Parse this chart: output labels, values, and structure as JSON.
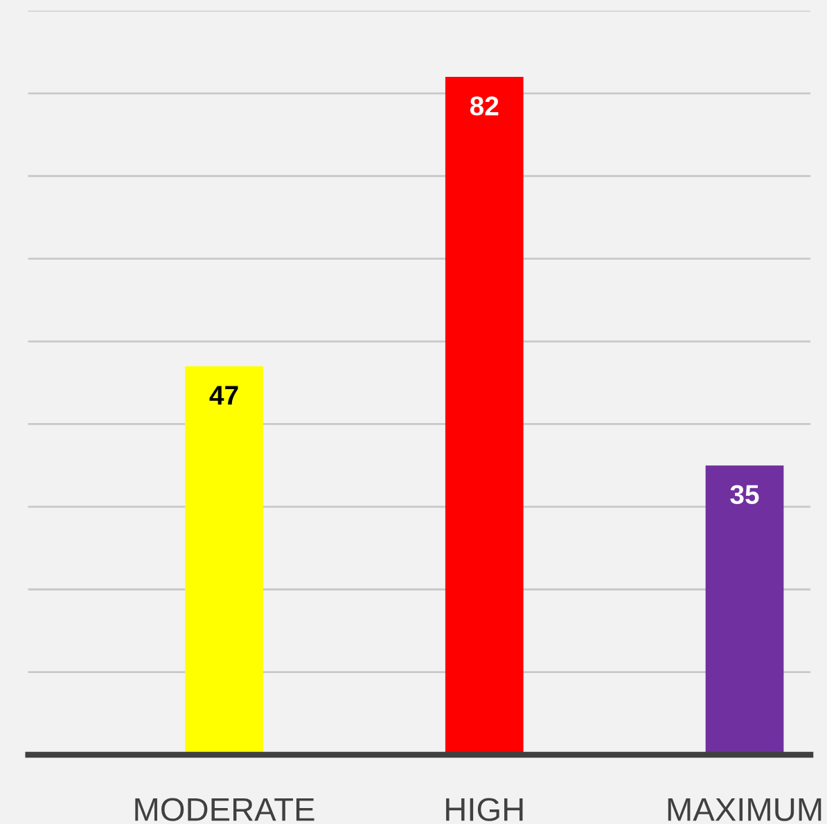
{
  "chart_data": {
    "type": "bar",
    "categories": [
      "MODERATE",
      "HIGH",
      "MAXIMUM"
    ],
    "values": [
      47,
      82,
      35
    ],
    "colors": [
      "#ffff00",
      "#ff0000",
      "#7030a0"
    ],
    "ylim": [
      0,
      90
    ],
    "yticks": [
      {
        "value": 10,
        "label": null
      },
      {
        "value": 20,
        "label": null
      },
      {
        "value": 30,
        "label": null
      },
      {
        "value": 40,
        "label": null
      },
      {
        "value": 50,
        "label": null
      },
      {
        "value": 60,
        "label": null
      },
      {
        "value": 70,
        "label": null
      },
      {
        "value": 80,
        "label": null
      },
      {
        "value": 90,
        "label": null
      }
    ],
    "grid": "y",
    "tick_labels": "x",
    "data_labels": true
  }
}
